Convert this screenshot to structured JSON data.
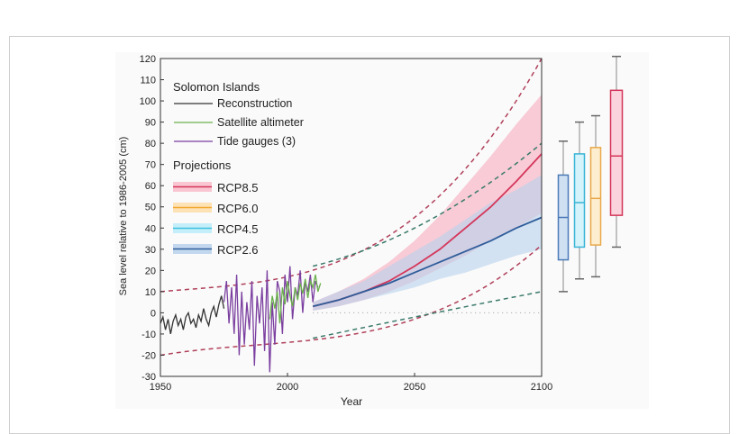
{
  "chart_data": {
    "type": "line",
    "xlabel": "Year",
    "ylabel": "Sea level relative to 1986-2005 (cm)",
    "xlim": [
      1950,
      2100
    ],
    "ylim": [
      -30,
      120
    ],
    "xticks": [
      1950,
      2000,
      2050,
      2100
    ],
    "yticks": [
      -30,
      -20,
      -10,
      0,
      10,
      20,
      30,
      40,
      50,
      60,
      70,
      80,
      90,
      100,
      110,
      120
    ],
    "grid": false,
    "legend": {
      "placement": "top-left",
      "title": "Solomon Islands",
      "projections_title": "Projections",
      "entries": [
        "Reconstruction",
        "Satellite altimeter",
        "Tide gauges (3)",
        "RCP8.5",
        "RCP6.0",
        "RCP4.5",
        "RCP2.6"
      ]
    },
    "colors": {
      "Reconstruction": "#333333",
      "Satellite altimeter": "#6ab04c",
      "Tide gauges (3)": "#7b3fa0",
      "RCP8.5": "#d4365a",
      "RCP6.0": "#f0a830",
      "RCP4.5": "#3cc0e0",
      "RCP2.6": "#2f5d9a"
    },
    "observations": [
      {
        "name": "Reconstruction",
        "x_start": 1950,
        "values": [
          -5,
          -2,
          -8,
          -3,
          -10,
          -4,
          -1,
          -6,
          -3,
          -8,
          -2,
          0,
          -5,
          -3,
          -7,
          -1,
          -4,
          2,
          -3,
          -6,
          0,
          3,
          -2,
          4,
          8,
          2
        ]
      },
      {
        "name": "Tide gauges (3)",
        "x_start": 1975,
        "values": [
          5,
          15,
          -5,
          12,
          -10,
          18,
          -20,
          10,
          -15,
          5,
          -8,
          15,
          -25,
          8,
          -5,
          12,
          -18,
          20,
          -28,
          5,
          -15,
          15,
          10,
          -10,
          18,
          5,
          22,
          -3,
          12,
          8,
          20,
          0,
          15,
          10,
          18,
          5,
          15,
          12
        ]
      },
      {
        "name": "Satellite altimeter",
        "x_start": 1993,
        "values": [
          -3,
          8,
          2,
          10,
          -5,
          12,
          4,
          15,
          8,
          3,
          12,
          6,
          14,
          9,
          16,
          7,
          15,
          12,
          18,
          10,
          14
        ]
      }
    ],
    "projection_years": [
      2010,
      2020,
      2030,
      2040,
      2050,
      2060,
      2070,
      2080,
      2090,
      2100
    ],
    "projections": [
      {
        "name": "RCP8.5",
        "median": [
          3,
          6,
          10,
          15,
          22,
          30,
          40,
          50,
          62,
          75
        ],
        "lower": [
          1,
          3,
          6,
          10,
          15,
          21,
          27,
          34,
          40,
          47
        ],
        "upper": [
          5,
          10,
          16,
          24,
          34,
          46,
          60,
          74,
          89,
          103
        ]
      },
      {
        "name": "RCP2.6",
        "median": [
          3,
          6,
          10,
          14,
          19,
          24,
          29,
          34,
          40,
          45
        ],
        "lower": [
          1,
          3,
          6,
          9,
          12,
          16,
          19,
          23,
          27,
          30
        ],
        "upper": [
          5,
          10,
          15,
          22,
          29,
          36,
          44,
          52,
          58,
          65
        ]
      }
    ],
    "dashed_envelopes": [
      {
        "color": "#b0405a",
        "points": [
          [
            1950,
            10
          ],
          [
            2000,
            17
          ],
          [
            2050,
            45
          ],
          [
            2100,
            120
          ]
        ]
      },
      {
        "color": "#b0405a",
        "points": [
          [
            1950,
            -20
          ],
          [
            2000,
            -14
          ],
          [
            2050,
            -3
          ],
          [
            2100,
            32
          ]
        ]
      },
      {
        "color": "#3a7a6a",
        "points": [
          [
            2010,
            22
          ],
          [
            2050,
            40
          ],
          [
            2100,
            80
          ]
        ]
      },
      {
        "color": "#3a7a6a",
        "points": [
          [
            2010,
            -12
          ],
          [
            2050,
            -2
          ],
          [
            2100,
            10
          ]
        ]
      }
    ],
    "zero_reference": {
      "from": 2010,
      "to": 2100,
      "value": 0
    },
    "boxplots_2100": [
      {
        "name": "RCP2.6",
        "whisker_low": 10,
        "q1": 25,
        "median": 45,
        "q3": 65,
        "whisker_high": 81,
        "fill": "#cfe0f2",
        "stroke": "#4a7ab8"
      },
      {
        "name": "RCP4.5",
        "whisker_low": 16,
        "q1": 31,
        "median": 52,
        "q3": 75,
        "whisker_high": 90,
        "fill": "#d4f3fb",
        "stroke": "#39b4d6"
      },
      {
        "name": "RCP6.0",
        "whisker_low": 17,
        "q1": 32,
        "median": 54,
        "q3": 78,
        "whisker_high": 93,
        "fill": "#fdeecf",
        "stroke": "#e8a84a"
      },
      {
        "name": "RCP8.5",
        "whisker_low": 31,
        "q1": 46,
        "median": 74,
        "q3": 105,
        "whisker_high": 121,
        "fill": "#fbd3dc",
        "stroke": "#d4365a"
      }
    ]
  }
}
